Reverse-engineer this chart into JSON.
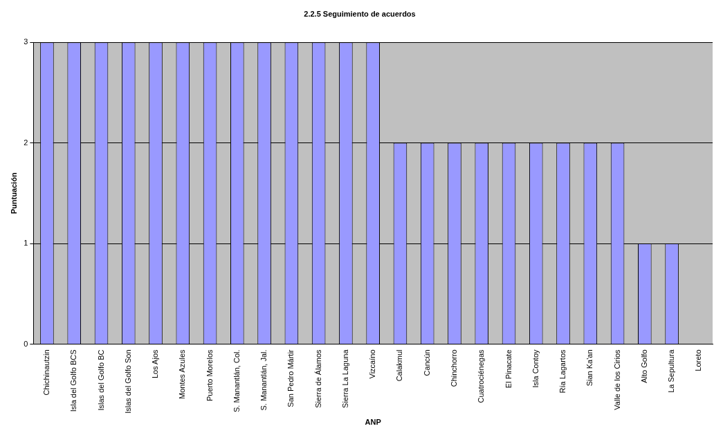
{
  "chart_data": {
    "type": "bar",
    "title": "2.2.5 Seguimiento de acuerdos",
    "xlabel": "ANP",
    "ylabel": "Puntuación",
    "categories": [
      "Chichinautzin",
      "Isla del Golfo BCS",
      "Islas del Golfo BC",
      "Islas del Golfo Son",
      "Los Ajos",
      "Montes Azules",
      "Puerto Morelos",
      "S. Manantlán, Col.",
      "S. Manantlán, Jal.",
      "San Pedro Mártir",
      "Sierra de Álamos",
      "Sierra La Laguna",
      "Vizcaíno",
      "Calakmul",
      "Cancún",
      "Chinchorro",
      "Cuatrociénegas",
      "El Pinacate",
      "Isla Contoy",
      "Ría Lagartos",
      "Sian Ka'an",
      "Valle de los Cirios",
      "Alto Golfo",
      "La Sepultura",
      "Loreto"
    ],
    "values": [
      3,
      3,
      3,
      3,
      3,
      3,
      3,
      3,
      3,
      3,
      3,
      3,
      3,
      2,
      2,
      2,
      2,
      2,
      2,
      2,
      2,
      2,
      1,
      1,
      0
    ],
    "color": "#9999ff",
    "ylim": [
      0,
      3
    ],
    "yticks": [
      0,
      1,
      2,
      3
    ],
    "grid": "y",
    "legend": false
  }
}
